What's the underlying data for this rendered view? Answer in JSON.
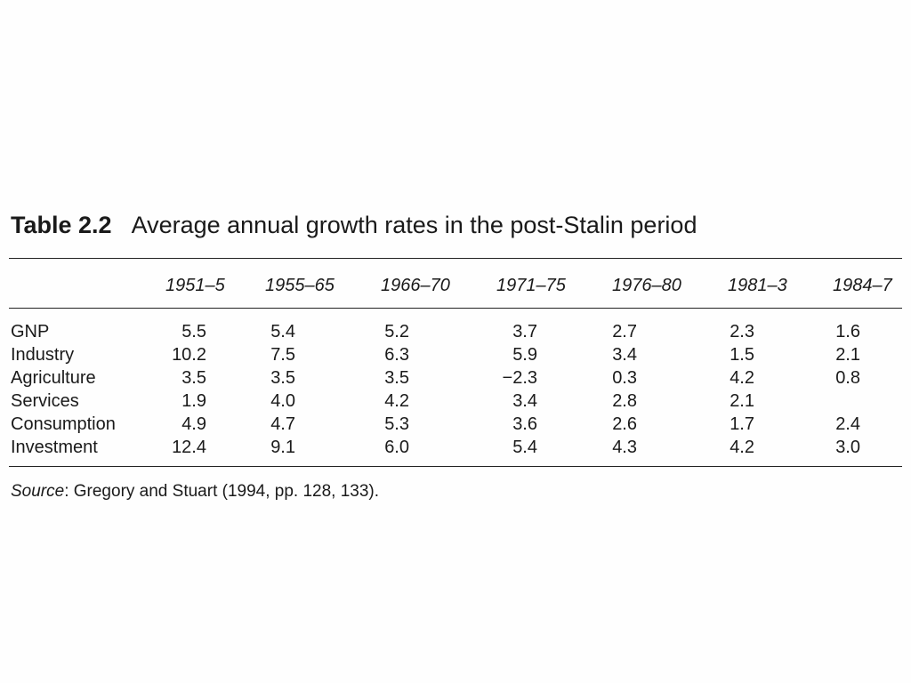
{
  "table": {
    "label": "Table 2.2",
    "title": "Average annual growth rates in the post-Stalin period",
    "columns": [
      "1951–5",
      "1955–65",
      "1966–70",
      "1971–75",
      "1976–80",
      "1981–3",
      "1984–7"
    ],
    "rows": [
      {
        "name": "GNP",
        "values": [
          "5.5",
          "5.4",
          "5.2",
          "3.7",
          "2.7",
          "2.3",
          "1.6"
        ]
      },
      {
        "name": "Industry",
        "values": [
          "10.2",
          "7.5",
          "6.3",
          "5.9",
          "3.4",
          "1.5",
          "2.1"
        ]
      },
      {
        "name": "Agriculture",
        "values": [
          "3.5",
          "3.5",
          "3.5",
          "−2.3",
          "0.3",
          "4.2",
          "0.8"
        ]
      },
      {
        "name": "Services",
        "values": [
          "1.9",
          "4.0",
          "4.2",
          "3.4",
          "2.8",
          "2.1",
          ""
        ]
      },
      {
        "name": "Consumption",
        "values": [
          "4.9",
          "4.7",
          "5.3",
          "3.6",
          "2.6",
          "1.7",
          "2.4"
        ]
      },
      {
        "name": "Investment",
        "values": [
          "12.4",
          "9.1",
          "6.0",
          "5.4",
          "4.3",
          "4.2",
          "3.0"
        ]
      }
    ]
  },
  "source": {
    "label": "Source",
    "text": ": Gregory and Stuart (1994, pp. 128, 133)."
  }
}
